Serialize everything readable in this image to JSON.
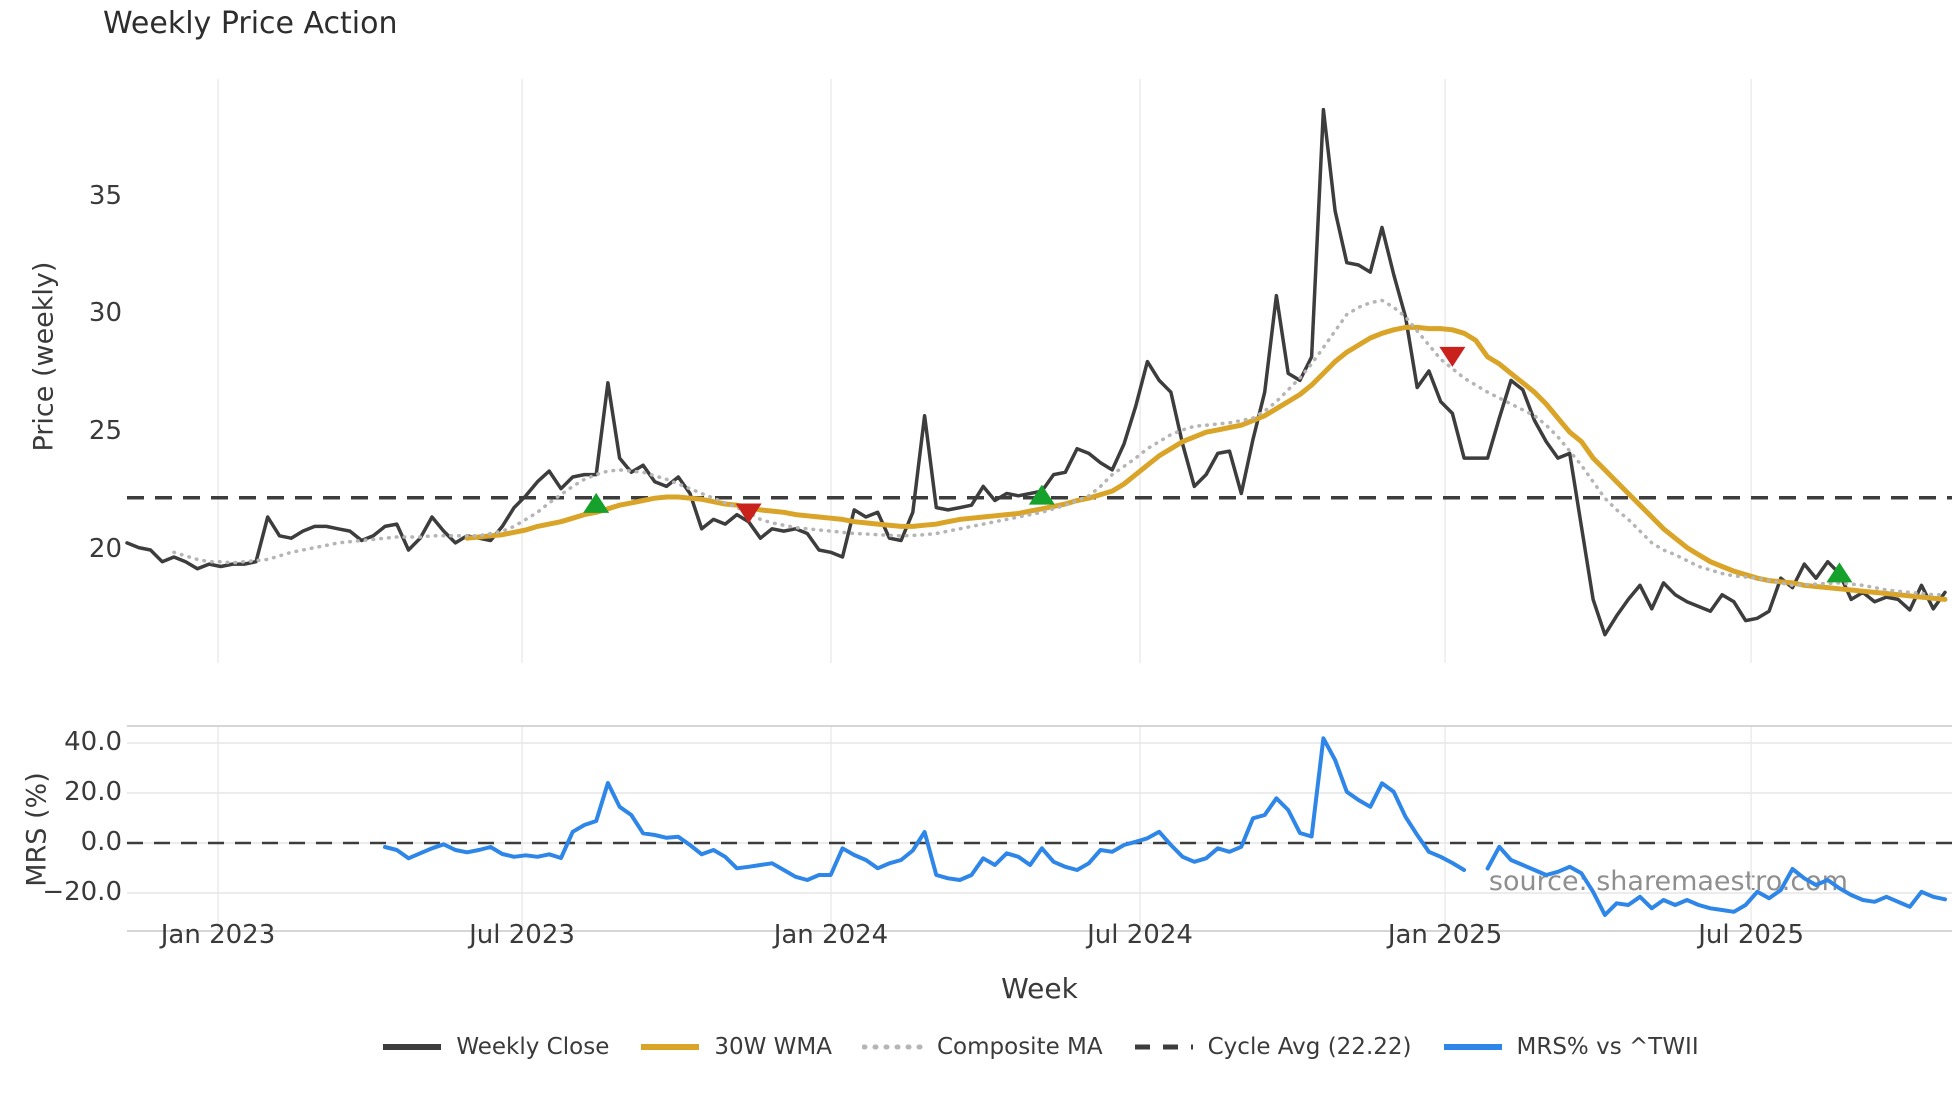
{
  "title": "Weekly Price Action",
  "watermark": {
    "text": "source: sharemaestro.com"
  },
  "legend": {
    "items": [
      {
        "label": "Weekly Close",
        "color": "#3d3d3d",
        "style": "solid"
      },
      {
        "label": "30W WMA",
        "color": "#d9a427",
        "style": "solid"
      },
      {
        "label": "Composite MA",
        "color": "#b5b5b5",
        "style": "dotted"
      },
      {
        "label": "Cycle Avg (22.22)",
        "color": "#3d3d3d",
        "style": "dashed"
      },
      {
        "label": "MRS% vs ^TWII",
        "color": "#2e86e8",
        "style": "solid"
      }
    ]
  },
  "chart_data": [
    {
      "type": "line",
      "panel": "price",
      "title": "Weekly Price Action",
      "ylabel": "Price (weekly)",
      "ylim": [
        15.2,
        40.0
      ],
      "yticks": [
        {
          "v": 20,
          "label": "20"
        },
        {
          "v": 25,
          "label": "25"
        },
        {
          "v": 30,
          "label": "30"
        },
        {
          "v": 35,
          "label": "35"
        }
      ],
      "xticks": [
        {
          "pos": 7.76,
          "label": "Jan 2023"
        },
        {
          "pos": 33.68,
          "label": "Jul 2023"
        },
        {
          "pos": 60.02,
          "label": "Jan 2024"
        },
        {
          "pos": 86.37,
          "label": "Jul 2024"
        },
        {
          "pos": 112.38,
          "label": "Jan 2025"
        },
        {
          "pos": 138.47,
          "label": "Jul 2025"
        }
      ],
      "n_weeks": 156,
      "cycle_avg": 22.22,
      "grid": "vertical-only",
      "legend_position": "bottom-center",
      "series": [
        {
          "name": "Weekly Close",
          "color": "#3d3d3d",
          "style": "solid",
          "width": 3.5,
          "values": [
            20.3,
            20.1,
            20.0,
            19.5,
            19.7,
            19.5,
            19.2,
            19.4,
            19.3,
            19.4,
            19.4,
            19.5,
            21.4,
            20.6,
            20.5,
            20.8,
            21.0,
            21.0,
            20.9,
            20.8,
            20.4,
            20.6,
            21.0,
            21.1,
            20.0,
            20.5,
            21.4,
            20.8,
            20.3,
            20.6,
            20.5,
            20.4,
            21.0,
            21.8,
            22.3,
            22.9,
            23.35,
            22.6,
            23.1,
            23.2,
            23.2,
            27.1,
            23.9,
            23.3,
            23.6,
            22.9,
            22.7,
            23.1,
            22.4,
            20.9,
            21.3,
            21.1,
            21.5,
            21.2,
            20.5,
            20.9,
            20.8,
            20.9,
            20.7,
            20.0,
            19.9,
            19.7,
            21.7,
            21.4,
            21.6,
            20.5,
            20.4,
            21.6,
            25.7,
            21.8,
            21.7,
            21.8,
            21.9,
            22.7,
            22.1,
            22.4,
            22.3,
            22.4,
            22.5,
            23.2,
            23.3,
            24.3,
            24.1,
            23.7,
            23.4,
            24.5,
            26.1,
            28.0,
            27.2,
            26.7,
            24.5,
            22.7,
            23.2,
            24.1,
            24.2,
            22.4,
            24.7,
            26.7,
            30.8,
            27.5,
            27.2,
            28.2,
            38.7,
            34.4,
            32.2,
            32.1,
            31.8,
            33.7,
            31.7,
            29.9,
            26.9,
            27.6,
            26.3,
            25.8,
            23.9,
            23.9,
            23.9,
            25.6,
            27.2,
            26.8,
            25.5,
            24.6,
            23.9,
            24.1,
            21.0,
            17.9,
            16.4,
            17.2,
            17.9,
            18.5,
            17.5,
            18.6,
            18.1,
            17.8,
            17.6,
            17.4,
            18.1,
            17.8,
            17.0,
            17.1,
            17.4,
            18.8,
            18.4,
            19.4,
            18.8,
            19.5,
            19.0,
            17.9,
            18.2,
            17.8,
            18.0,
            17.9,
            17.45,
            18.5,
            17.5,
            18.2
          ]
        },
        {
          "name": "30W WMA",
          "color": "#d9a427",
          "style": "solid",
          "width": 5,
          "values": [
            null,
            null,
            null,
            null,
            null,
            null,
            null,
            null,
            null,
            null,
            null,
            null,
            null,
            null,
            null,
            null,
            null,
            null,
            null,
            null,
            null,
            null,
            null,
            null,
            null,
            null,
            null,
            null,
            null,
            20.5,
            20.55,
            20.6,
            20.65,
            20.75,
            20.85,
            21.0,
            21.1,
            21.2,
            21.35,
            21.5,
            21.6,
            21.75,
            21.9,
            22.0,
            22.1,
            22.2,
            22.25,
            22.25,
            22.2,
            22.15,
            22.05,
            21.95,
            21.9,
            21.8,
            21.7,
            21.65,
            21.6,
            21.5,
            21.45,
            21.4,
            21.35,
            21.3,
            21.2,
            21.15,
            21.1,
            21.05,
            21.0,
            21.0,
            21.05,
            21.1,
            21.2,
            21.3,
            21.35,
            21.4,
            21.45,
            21.5,
            21.55,
            21.65,
            21.75,
            21.85,
            21.95,
            22.1,
            22.2,
            22.35,
            22.5,
            22.8,
            23.2,
            23.6,
            24.0,
            24.3,
            24.6,
            24.8,
            25.0,
            25.1,
            25.2,
            25.3,
            25.5,
            25.7,
            26.0,
            26.3,
            26.6,
            27.0,
            27.5,
            28.0,
            28.4,
            28.7,
            29.0,
            29.2,
            29.35,
            29.45,
            29.45,
            29.4,
            29.4,
            29.35,
            29.2,
            28.9,
            28.2,
            27.9,
            27.5,
            27.1,
            26.7,
            26.2,
            25.6,
            25.0,
            24.6,
            23.9,
            23.4,
            22.9,
            22.4,
            21.9,
            21.4,
            20.9,
            20.5,
            20.1,
            19.8,
            19.5,
            19.3,
            19.1,
            18.95,
            18.8,
            18.7,
            18.65,
            18.6,
            18.5,
            18.45,
            18.4,
            18.35,
            18.3,
            18.25,
            18.2,
            18.15,
            18.1,
            18.05,
            18.0,
            17.95,
            17.9
          ]
        },
        {
          "name": "Composite MA",
          "color": "#b5b5b5",
          "style": "dotted",
          "width": 3.5,
          "values": [
            null,
            null,
            null,
            null,
            19.9,
            19.75,
            19.6,
            19.5,
            19.5,
            19.45,
            19.5,
            19.55,
            19.6,
            19.75,
            19.9,
            20.0,
            20.1,
            20.2,
            20.3,
            20.35,
            20.4,
            20.45,
            20.5,
            20.55,
            20.55,
            20.55,
            20.6,
            20.6,
            20.6,
            20.6,
            20.6,
            20.7,
            20.8,
            21.0,
            21.3,
            21.6,
            22.0,
            22.35,
            22.7,
            23.0,
            23.2,
            23.35,
            23.4,
            23.35,
            23.3,
            23.15,
            23.0,
            22.8,
            22.6,
            22.4,
            22.2,
            22.0,
            21.8,
            21.6,
            21.3,
            21.15,
            21.05,
            20.95,
            20.9,
            20.85,
            20.8,
            20.75,
            20.7,
            20.68,
            20.65,
            20.62,
            20.6,
            20.62,
            20.65,
            20.7,
            20.8,
            20.9,
            21.0,
            21.1,
            21.2,
            21.3,
            21.4,
            21.5,
            21.6,
            21.75,
            21.9,
            22.1,
            22.3,
            22.7,
            23.2,
            23.55,
            23.9,
            24.3,
            24.6,
            24.9,
            25.1,
            25.25,
            25.3,
            25.35,
            25.4,
            25.5,
            25.6,
            25.9,
            26.3,
            26.8,
            27.3,
            27.9,
            28.6,
            29.3,
            30.0,
            30.3,
            30.5,
            30.6,
            30.3,
            29.9,
            29.3,
            28.7,
            28.1,
            27.7,
            27.3,
            27.0,
            26.7,
            26.45,
            26.2,
            25.95,
            25.7,
            25.3,
            24.8,
            24.2,
            23.6,
            22.9,
            22.2,
            21.7,
            21.3,
            20.8,
            20.3,
            20.0,
            19.8,
            19.55,
            19.3,
            19.15,
            19.0,
            18.9,
            18.85,
            18.8,
            18.7,
            18.6,
            18.5,
            18.52,
            18.55,
            18.58,
            18.6,
            18.55,
            18.5,
            18.4,
            18.3,
            18.25,
            18.2,
            18.15,
            18.1,
            18.1
          ]
        }
      ],
      "markers": {
        "buy": {
          "symbol": "triangle-up",
          "color": "#16a02c",
          "points": [
            {
              "week": 40,
              "price": 22.0
            },
            {
              "week": 78,
              "price": 22.35
            },
            {
              "week": 146,
              "price": 19.05
            }
          ]
        },
        "sell": {
          "symbol": "triangle-down",
          "color": "#c9211c",
          "points": [
            {
              "week": 53,
              "price": 21.55
            },
            {
              "week": 113,
              "price": 28.2
            }
          ]
        }
      }
    },
    {
      "type": "line",
      "panel": "mrs",
      "ylabel": "MRS (%)",
      "xlabel": "Week",
      "ylim": [
        -35.2,
        46.8
      ],
      "yticks": [
        {
          "v": 40,
          "label": "40.0"
        },
        {
          "v": 20,
          "label": "20.0"
        },
        {
          "v": 0,
          "label": "0.0"
        },
        {
          "v": -20,
          "label": "−20.0"
        }
      ],
      "zero_line": 0,
      "grid": "both",
      "series": [
        {
          "name": "MRS% vs ^TWII",
          "color": "#2e86e8",
          "style": "solid",
          "width": 4,
          "values": [
            null,
            null,
            null,
            null,
            null,
            null,
            null,
            null,
            null,
            null,
            null,
            null,
            null,
            null,
            null,
            null,
            null,
            null,
            null,
            null,
            null,
            null,
            -1.6,
            -2.8,
            -6.1,
            -4.1,
            -2.1,
            -0.5,
            -2.8,
            -3.7,
            -2.8,
            -1.6,
            -4.4,
            -5.5,
            -4.9,
            -5.5,
            -4.5,
            -6.0,
            4.5,
            7.2,
            8.8,
            24.0,
            14.5,
            11.2,
            3.9,
            3.2,
            2.1,
            2.5,
            -0.8,
            -4.5,
            -2.8,
            -5.5,
            -10.1,
            -9.5,
            -8.8,
            -8.1,
            -10.8,
            -13.5,
            -14.8,
            -12.8,
            -12.8,
            -2.1,
            -4.8,
            -6.8,
            -10.1,
            -8.1,
            -6.8,
            -3.0,
            4.4,
            -12.8,
            -14.1,
            -14.8,
            -12.8,
            -6.1,
            -8.8,
            -4.1,
            -5.5,
            -8.8,
            -2.1,
            -7.5,
            -9.5,
            -10.8,
            -8.1,
            -2.8,
            -3.5,
            -0.8,
            0.5,
            1.9,
            4.5,
            -0.8,
            -5.5,
            -7.5,
            -6.1,
            -2.1,
            -3.5,
            -1.5,
            9.9,
            11.2,
            17.9,
            13.2,
            4.0,
            2.6,
            41.9,
            33.2,
            20.5,
            17.2,
            14.5,
            23.9,
            20.5,
            10.5,
            3.2,
            -3.5,
            -5.5,
            -8.0,
            -10.8,
            null,
            -10.2,
            -1.5,
            -6.8,
            -8.8,
            -10.8,
            -12.8,
            -11.5,
            -9.5,
            -12.1,
            -19.5,
            -28.8,
            -24.1,
            -24.8,
            -21.5,
            -26.1,
            -22.8,
            -24.8,
            -22.8,
            -24.8,
            -26.1,
            -26.8,
            -27.5,
            -24.8,
            -19.5,
            -22.1,
            -18.8,
            -10.4,
            -14.1,
            -16.8,
            -14.8,
            -18.1,
            -20.8,
            -22.8,
            -23.5,
            -21.5,
            -23.5,
            -25.5,
            -19.5,
            -21.5,
            -22.5
          ]
        }
      ]
    }
  ]
}
